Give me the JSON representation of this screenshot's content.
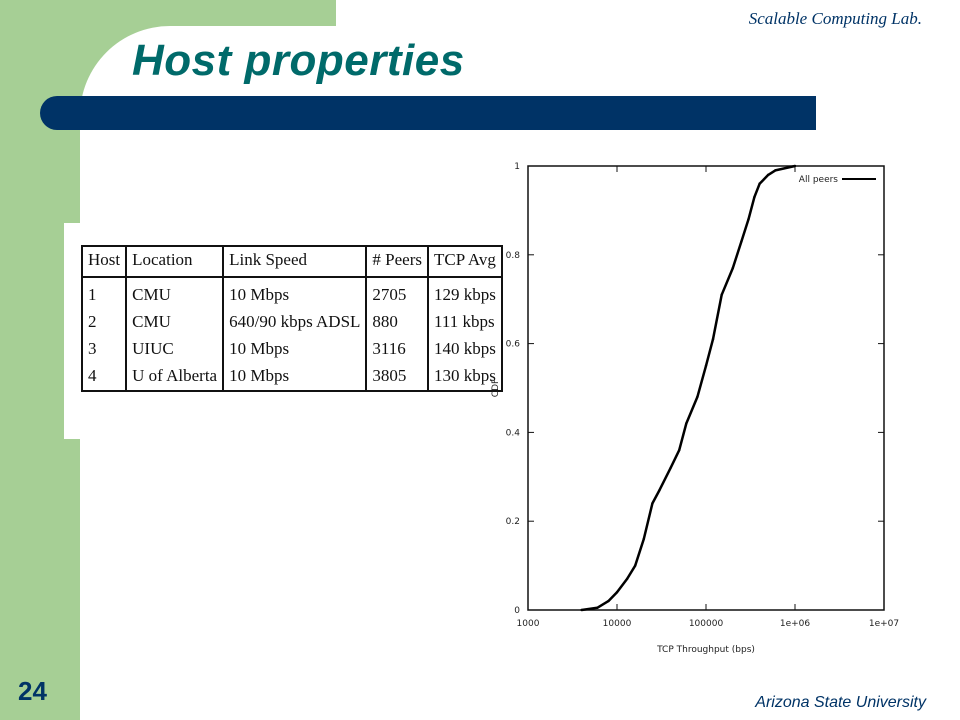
{
  "header": {
    "lab_name": "Scalable Computing Lab.",
    "title": "Host properties"
  },
  "table": {
    "columns": [
      "Host",
      "Location",
      "Link Speed",
      "# Peers",
      "TCP Avg"
    ],
    "rows": [
      [
        "1",
        "CMU",
        "10 Mbps",
        "2705",
        "129 kbps"
      ],
      [
        "2",
        "CMU",
        "640/90 kbps ADSL",
        "880",
        "111 kbps"
      ],
      [
        "3",
        "UIUC",
        "10 Mbps",
        "3116",
        "140 kbps"
      ],
      [
        "4",
        "U of Alberta",
        "10 Mbps",
        "3805",
        "130 kbps"
      ]
    ]
  },
  "chart_data": {
    "type": "line",
    "title": "",
    "xlabel": "TCP Throughput (bps)",
    "ylabel": "CDF",
    "xscale": "log",
    "xlim": [
      1000,
      10000000
    ],
    "ylim": [
      0,
      1
    ],
    "x_ticks": [
      1000,
      10000,
      100000,
      1000000,
      10000000
    ],
    "x_tick_labels": [
      "1000",
      "10000",
      "100000",
      "1e+06",
      "1e+07"
    ],
    "y_ticks": [
      0,
      0.2,
      0.4,
      0.6,
      0.8,
      1
    ],
    "y_tick_labels": [
      "0",
      "0.2",
      "0.4",
      "0.6",
      "0.8",
      "1"
    ],
    "legend_position": "top-right",
    "grid": false,
    "series": [
      {
        "name": "All peers",
        "color": "#000000",
        "x": [
          4000,
          6000,
          8000,
          10000,
          13000,
          16000,
          20000,
          25000,
          30000,
          40000,
          50000,
          60000,
          80000,
          100000,
          120000,
          150000,
          200000,
          250000,
          300000,
          350000,
          400000,
          500000,
          600000,
          1000000
        ],
        "y": [
          0,
          0.005,
          0.02,
          0.04,
          0.07,
          0.1,
          0.16,
          0.24,
          0.27,
          0.32,
          0.36,
          0.42,
          0.48,
          0.55,
          0.61,
          0.71,
          0.77,
          0.83,
          0.88,
          0.93,
          0.96,
          0.98,
          0.99,
          1.0
        ]
      }
    ]
  },
  "footer": {
    "page_number": "24",
    "university": "Arizona State University"
  }
}
